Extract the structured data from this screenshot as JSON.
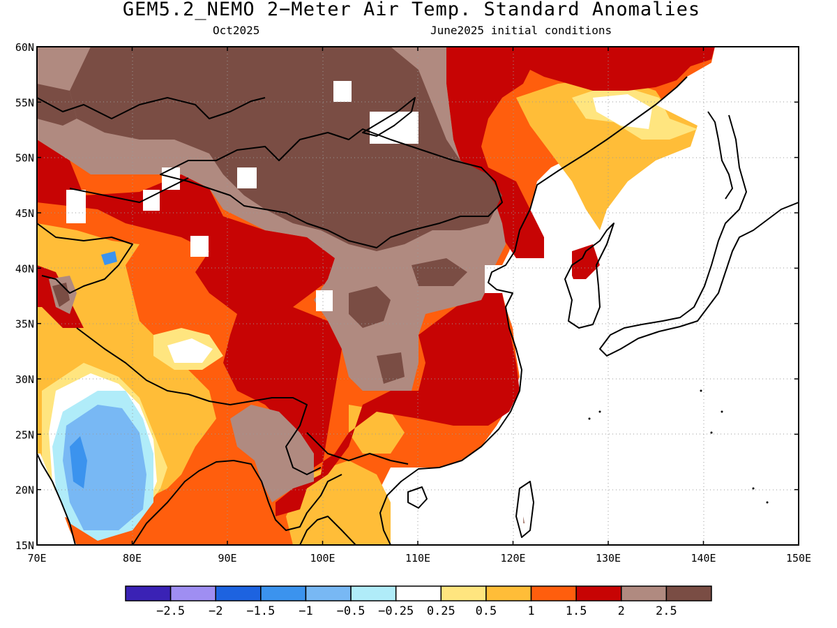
{
  "title": "GEM5.2_NEMO 2−Meter Air Temp. Standard Anomalies",
  "subtitle_left": "Oct2025",
  "subtitle_right": "June2025 initial conditions",
  "map": {
    "lon_range": [
      70,
      150
    ],
    "lat_range": [
      15,
      60
    ],
    "lon_ticks": [
      {
        "value": 70,
        "label": "70E"
      },
      {
        "value": 80,
        "label": "80E"
      },
      {
        "value": 90,
        "label": "90E"
      },
      {
        "value": 100,
        "label": "100E"
      },
      {
        "value": 110,
        "label": "110E"
      },
      {
        "value": 120,
        "label": "120E"
      },
      {
        "value": 130,
        "label": "130E"
      },
      {
        "value": 140,
        "label": "140E"
      },
      {
        "value": 150,
        "label": "150E"
      }
    ],
    "lat_ticks": [
      {
        "value": 15,
        "label": "15N"
      },
      {
        "value": 20,
        "label": "20N"
      },
      {
        "value": 25,
        "label": "25N"
      },
      {
        "value": 30,
        "label": "30N"
      },
      {
        "value": 35,
        "label": "35N"
      },
      {
        "value": 40,
        "label": "40N"
      },
      {
        "value": 45,
        "label": "45N"
      },
      {
        "value": 50,
        "label": "50N"
      },
      {
        "value": 55,
        "label": "55N"
      },
      {
        "value": 60,
        "label": "60N"
      }
    ],
    "grid": "dotted",
    "coastline_color": "#000000"
  },
  "colorbar": {
    "colors": [
      "#3a22b5",
      "#9f8ef2",
      "#1d63e0",
      "#3b93ee",
      "#78b8f4",
      "#b0ecf9",
      "#ffffff",
      "#ffe57f",
      "#ffbd38",
      "#ff5e0d",
      "#c70404",
      "#b08a80",
      "#7a4d44"
    ],
    "labels": [
      "−2.5",
      "−2",
      "−1.5",
      "−1",
      "−0.5",
      "−0.25",
      "0.25",
      "0.5",
      "1",
      "1.5",
      "2",
      "2.5"
    ]
  }
}
